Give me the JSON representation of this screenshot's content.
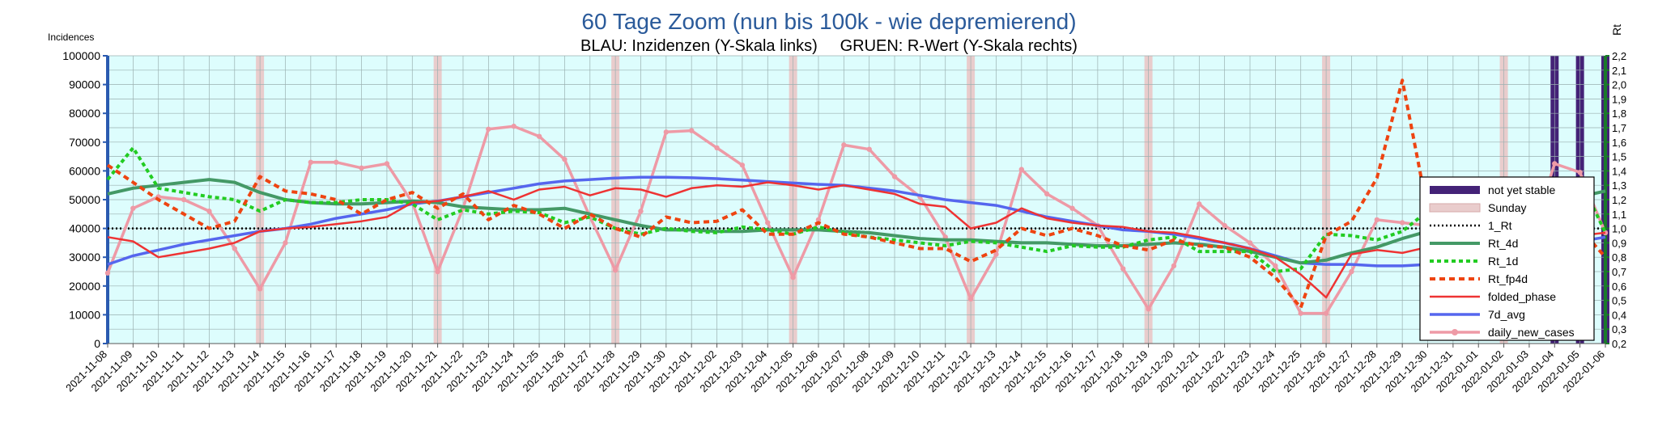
{
  "chart_data": {
    "type": "line",
    "title": "60 Tage Zoom  (nun bis 100k - wie depremierend)",
    "subtitle": "BLAU: Inzidenzen (Y-Skala links)     GRUEN: R-Wert (Y-Skala rechts)",
    "ylabel_left": "Incidences",
    "ylabel_right": "Rt",
    "ylim_left": [
      0,
      100000
    ],
    "ylim_right": [
      0.2,
      2.2
    ],
    "yticks_left": [
      "0",
      "10000",
      "20000",
      "30000",
      "40000",
      "50000",
      "60000",
      "70000",
      "80000",
      "90000",
      "100000"
    ],
    "yticks_right": [
      "0,2",
      "0,3",
      "0,4",
      "0,5",
      "0,6",
      "0,7",
      "0,8",
      "0,9",
      "1,0",
      "1,1",
      "1,2",
      "1,3",
      "1,4",
      "1,5",
      "1,6",
      "1,7",
      "1,8",
      "1,9",
      "2,0",
      "2,1",
      "2,2"
    ],
    "categories": [
      "2021-11-08",
      "2021-11-09",
      "2021-11-10",
      "2021-11-11",
      "2021-11-12",
      "2021-11-13",
      "2021-11-14",
      "2021-11-15",
      "2021-11-16",
      "2021-11-17",
      "2021-11-18",
      "2021-11-19",
      "2021-11-20",
      "2021-11-21",
      "2021-11-22",
      "2021-11-23",
      "2021-11-24",
      "2021-11-25",
      "2021-11-26",
      "2021-11-27",
      "2021-11-28",
      "2021-11-29",
      "2021-11-30",
      "2021-12-01",
      "2021-12-02",
      "2021-12-03",
      "2021-12-04",
      "2021-12-05",
      "2021-12-06",
      "2021-12-07",
      "2021-12-08",
      "2021-12-09",
      "2021-12-10",
      "2021-12-11",
      "2021-12-12",
      "2021-12-13",
      "2021-12-14",
      "2021-12-15",
      "2021-12-16",
      "2021-12-17",
      "2021-12-18",
      "2021-12-19",
      "2021-12-20",
      "2021-12-21",
      "2021-12-22",
      "2021-12-23",
      "2021-12-24",
      "2021-12-25",
      "2021-12-26",
      "2021-12-27",
      "2021-12-28",
      "2021-12-29",
      "2021-12-30",
      "2021-12-31",
      "2022-01-01",
      "2022-01-02",
      "2022-01-03",
      "2022-01-04",
      "2022-01-05",
      "2022-01-06"
    ],
    "sunday_indices": [
      6,
      13,
      20,
      27,
      34,
      41,
      48,
      55
    ],
    "not_yet_stable_indices": [
      57,
      58,
      59
    ],
    "grid": true,
    "legend_position": "right",
    "legend": [
      "not yet stable",
      "Sunday",
      "1_Rt",
      "Rt_4d",
      "Rt_1d",
      "Rt_fp4d",
      "folded_phase",
      "7d_avg",
      "daily_new_cases"
    ],
    "series": [
      {
        "name": "daily_new_cases",
        "axis": "left",
        "color": "#ee9aa6",
        "style": "solid-markers",
        "values": [
          24500,
          47000,
          51000,
          50000,
          46000,
          33000,
          19000,
          35000,
          63000,
          63000,
          61000,
          62500,
          49000,
          25000,
          47000,
          74500,
          75500,
          72000,
          64000,
          44000,
          25500,
          46000,
          73500,
          74000,
          68000,
          62000,
          42000,
          23000,
          43000,
          69000,
          67500,
          58000,
          51000,
          37000,
          15500,
          31000,
          60500,
          52000,
          47000,
          41000,
          26000,
          12000,
          27000,
          48500,
          41000,
          35000,
          27000,
          10500,
          10500,
          25000,
          43000,
          42000,
          41000,
          27000,
          14000,
          14500,
          35000,
          62500,
          59500,
          38500
        ]
      },
      {
        "name": "7d_avg",
        "axis": "left",
        "color": "#5566ee",
        "style": "solid",
        "values": [
          27500,
          30500,
          32500,
          34500,
          36000,
          37500,
          39000,
          40000,
          41500,
          43500,
          45000,
          46500,
          48500,
          49500,
          51000,
          52500,
          54000,
          55500,
          56500,
          57000,
          57500,
          57800,
          57800,
          57600,
          57300,
          56800,
          56300,
          55800,
          55300,
          55000,
          54000,
          53000,
          51500,
          50000,
          49000,
          48000,
          46000,
          44000,
          42500,
          41000,
          39500,
          39000,
          38000,
          36500,
          35000,
          33000,
          30500,
          28000,
          27500,
          27500,
          27000,
          27000,
          27500,
          28500,
          29000,
          29500,
          30500,
          32500,
          35500,
          37000
        ]
      },
      {
        "name": "folded_phase",
        "axis": "left",
        "color": "#ee3333",
        "style": "solid",
        "values": [
          37000,
          35500,
          30000,
          31500,
          33000,
          35000,
          39000,
          40000,
          40500,
          41500,
          42500,
          44000,
          49000,
          49500,
          51000,
          53000,
          50000,
          53500,
          54500,
          51500,
          54000,
          53500,
          51000,
          54000,
          55000,
          54500,
          56000,
          55000,
          53500,
          55000,
          53500,
          52000,
          48500,
          47500,
          40000,
          42000,
          47000,
          43500,
          42000,
          41000,
          40500,
          39000,
          38500,
          37000,
          35000,
          33000,
          30000,
          24000,
          16000,
          31000,
          32500,
          31500,
          33500,
          36000,
          36500,
          35500,
          36500,
          37500,
          37500,
          38500
        ]
      },
      {
        "name": "Rt_4d",
        "axis": "right",
        "color": "#449966",
        "style": "solid",
        "values": [
          1.24,
          1.28,
          1.3,
          1.32,
          1.34,
          1.32,
          1.25,
          1.2,
          1.18,
          1.17,
          1.17,
          1.18,
          1.19,
          1.18,
          1.15,
          1.14,
          1.13,
          1.13,
          1.14,
          1.1,
          1.06,
          1.02,
          0.99,
          0.99,
          0.98,
          0.98,
          0.99,
          0.99,
          0.99,
          0.98,
          0.97,
          0.95,
          0.93,
          0.92,
          0.92,
          0.91,
          0.9,
          0.9,
          0.89,
          0.88,
          0.88,
          0.89,
          0.9,
          0.89,
          0.87,
          0.84,
          0.8,
          0.76,
          0.78,
          0.83,
          0.87,
          0.93,
          0.98,
          1.02,
          1.06,
          1.1,
          1.13,
          1.16,
          1.22,
          1.26
        ]
      },
      {
        "name": "Rt_1d",
        "axis": "right",
        "color": "#22cc22",
        "style": "dotted",
        "values": [
          1.34,
          1.56,
          1.28,
          1.25,
          1.22,
          1.2,
          1.12,
          1.2,
          1.18,
          1.18,
          1.2,
          1.2,
          1.17,
          1.06,
          1.13,
          1.1,
          1.12,
          1.11,
          1.04,
          1.08,
          1.0,
          0.96,
          1.0,
          0.98,
          0.97,
          1.01,
          0.99,
          0.96,
          1.01,
          0.97,
          0.94,
          0.92,
          0.9,
          0.88,
          0.91,
          0.9,
          0.87,
          0.84,
          0.88,
          0.87,
          0.87,
          0.92,
          0.94,
          0.84,
          0.84,
          0.84,
          0.7,
          0.72,
          0.96,
          0.95,
          0.92,
          0.98,
          1.12,
          1.14,
          1.1,
          1.1,
          1.1,
          1.26,
          1.34,
          0.97
        ]
      },
      {
        "name": "Rt_fp4d",
        "axis": "right",
        "color": "#ee4411",
        "style": "dashed",
        "values": [
          1.44,
          1.32,
          1.2,
          1.1,
          1.0,
          1.05,
          1.36,
          1.26,
          1.24,
          1.2,
          1.1,
          1.2,
          1.25,
          1.14,
          1.24,
          1.06,
          1.16,
          1.1,
          1.0,
          1.1,
          1.0,
          0.94,
          1.08,
          1.04,
          1.05,
          1.13,
          0.96,
          0.96,
          1.04,
          0.96,
          0.94,
          0.9,
          0.86,
          0.86,
          0.77,
          0.85,
          1.0,
          0.95,
          1.0,
          0.95,
          0.88,
          0.85,
          0.92,
          0.88,
          0.87,
          0.8,
          0.66,
          0.45,
          0.95,
          1.05,
          1.35,
          2.03,
          1.12,
          1.12,
          1.12,
          1.1,
          1.05,
          1.02,
          1.0,
          0.8
        ]
      },
      {
        "name": "1_Rt",
        "axis": "right",
        "color": "#000000",
        "style": "dotted",
        "values": [
          1.0,
          1.0,
          1.0,
          1.0,
          1.0,
          1.0,
          1.0,
          1.0,
          1.0,
          1.0,
          1.0,
          1.0,
          1.0,
          1.0,
          1.0,
          1.0,
          1.0,
          1.0,
          1.0,
          1.0,
          1.0,
          1.0,
          1.0,
          1.0,
          1.0,
          1.0,
          1.0,
          1.0,
          1.0,
          1.0,
          1.0,
          1.0,
          1.0,
          1.0,
          1.0,
          1.0,
          1.0,
          1.0,
          1.0,
          1.0,
          1.0,
          1.0,
          1.0,
          1.0,
          1.0,
          1.0,
          1.0,
          1.0,
          1.0,
          1.0,
          1.0,
          1.0,
          1.0,
          1.0,
          1.0,
          1.0,
          1.0,
          1.0,
          1.0,
          1.0
        ]
      }
    ],
    "colors": {
      "title": "#2a5a9a",
      "plot_background": "#ddfdfd",
      "sunday_band": "#e9cccc",
      "not_yet_stable": "#442277",
      "left_axis": "#2a5ab0",
      "right_axis": "#1a7a2a"
    }
  }
}
